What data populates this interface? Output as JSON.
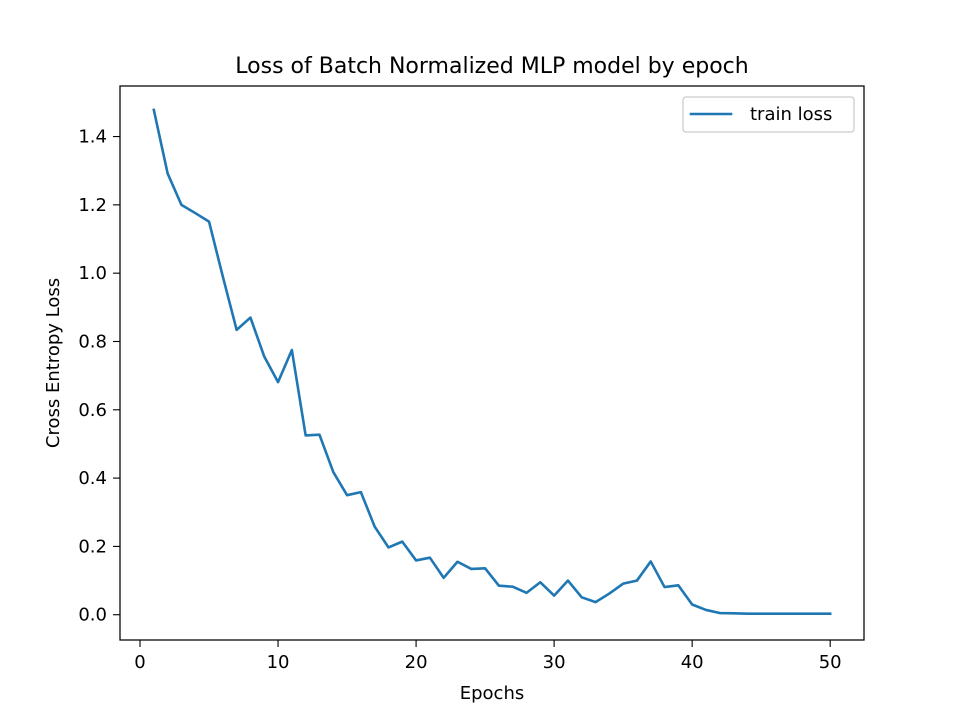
{
  "chart_data": {
    "type": "line",
    "title": "Loss of Batch Normalized MLP model by epoch",
    "xlabel": "Epochs",
    "ylabel": "Cross Entropy Loss",
    "xlim": [
      -1.45,
      52.45
    ],
    "ylim": [
      -0.074,
      1.548
    ],
    "xticks": [
      0,
      10,
      20,
      30,
      40,
      50
    ],
    "yticks": [
      0.0,
      0.2,
      0.4,
      0.6,
      0.8,
      1.0,
      1.2,
      1.4
    ],
    "xtick_labels": [
      "0",
      "10",
      "20",
      "30",
      "40",
      "50"
    ],
    "ytick_labels": [
      "0.0",
      "0.2",
      "0.4",
      "0.6",
      "0.8",
      "1.0",
      "1.2",
      "1.4"
    ],
    "grid": false,
    "legend_position": "top-right",
    "series": [
      {
        "name": "train loss",
        "color": "#1f77b4",
        "x": [
          1,
          2,
          3,
          4,
          5,
          6,
          7,
          8,
          9,
          10,
          11,
          12,
          13,
          14,
          15,
          16,
          17,
          18,
          19,
          20,
          21,
          22,
          23,
          24,
          25,
          26,
          27,
          28,
          29,
          30,
          31,
          32,
          33,
          34,
          35,
          36,
          37,
          38,
          39,
          40,
          41,
          42,
          43,
          44,
          45,
          46,
          47,
          48,
          49,
          50
        ],
        "y": [
          1.478,
          1.292,
          1.2,
          1.176,
          1.151,
          0.99,
          0.834,
          0.87,
          0.756,
          0.681,
          0.775,
          0.525,
          0.527,
          0.418,
          0.35,
          0.359,
          0.258,
          0.197,
          0.214,
          0.159,
          0.167,
          0.108,
          0.155,
          0.134,
          0.136,
          0.085,
          0.082,
          0.064,
          0.095,
          0.056,
          0.1,
          0.051,
          0.037,
          0.062,
          0.091,
          0.1,
          0.156,
          0.081,
          0.086,
          0.03,
          0.014,
          0.005,
          0.004,
          0.003,
          0.003,
          0.003,
          0.003,
          0.003,
          0.003,
          0.003
        ]
      }
    ]
  }
}
